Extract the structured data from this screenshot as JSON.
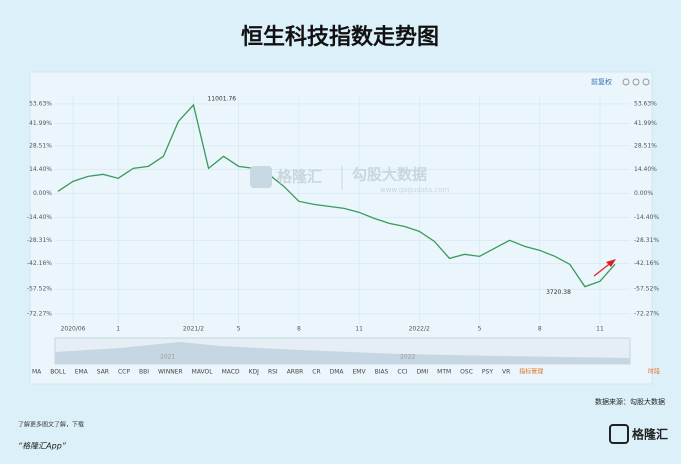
{
  "chart_data": {
    "type": "line",
    "title": "恒生科技指数走势图",
    "categories": [
      null,
      "2020/06",
      null,
      null,
      "1",
      null,
      null,
      null,
      null,
      "2021/2",
      null,
      null,
      "5",
      null,
      null,
      null,
      "8",
      null,
      null,
      null,
      "11",
      null,
      null,
      null,
      "2022/2",
      null,
      null,
      null,
      "5",
      null,
      null,
      null,
      "8",
      null,
      null,
      null,
      "11",
      null
    ],
    "series": [
      {
        "color": "#3a9a5a",
        "values": [
          1.2,
          7.2,
          10.2,
          11.4,
          9,
          15,
          16.2,
          22.2,
          43.2,
          53,
          15,
          22.2,
          16.2,
          15,
          11.4,
          4.2,
          -4.8,
          -6.6,
          -7.8,
          -9,
          -11.4,
          -15,
          -18,
          -19.8,
          -22.8,
          -28.8,
          -39,
          -36.6,
          -37.8,
          -33,
          -28.2,
          -31.8,
          -34.2,
          -37.8,
          -42.6,
          -56,
          -52.8,
          -42.6
        ]
      }
    ],
    "ylim": [
      -76,
      59
    ],
    "yticks": [
      {
        "value": 53.63,
        "label": "53.63%"
      },
      {
        "value": 41.99,
        "label": "41.99%"
      },
      {
        "value": 28.51,
        "label": "28.51%"
      },
      {
        "value": 14.4,
        "label": "14.40%"
      },
      {
        "value": 0,
        "label": "0.00%"
      },
      {
        "value": -14.4,
        "label": "-14.40%"
      },
      {
        "value": -28.31,
        "label": "-28.31%"
      },
      {
        "value": -42.16,
        "label": "-42.16%"
      },
      {
        "value": -57.52,
        "label": "-57.52%"
      },
      {
        "value": -72.27,
        "label": "-72.27%"
      }
    ],
    "grid": true,
    "annotations": {
      "high": "11001.76",
      "low": "3720.38"
    },
    "watermark": {
      "brand": "格隆汇",
      "source": "勾股大数据",
      "url": "www.gogudata.com"
    },
    "navigator": [
      "2021",
      "2022"
    ],
    "indicators": [
      "MA",
      "BOLL",
      "EMA",
      "SAR",
      "CCP",
      "BBI",
      "WINNER",
      "MAVOL",
      "MACD",
      "KDJ",
      "RSI",
      "ARBR",
      "CR",
      "DMA",
      "EMV",
      "BIAS",
      "CCI",
      "DMI",
      "MTM",
      "OSC",
      "PSY",
      "VR",
      "指标管理"
    ],
    "period": "时段",
    "toolbar": "前复权",
    "source": "数据来源：勾股大数据",
    "footer": {
      "note": "了解更多图文了解，下载",
      "app": "“格隆汇App”",
      "logo": "格隆汇"
    }
  }
}
